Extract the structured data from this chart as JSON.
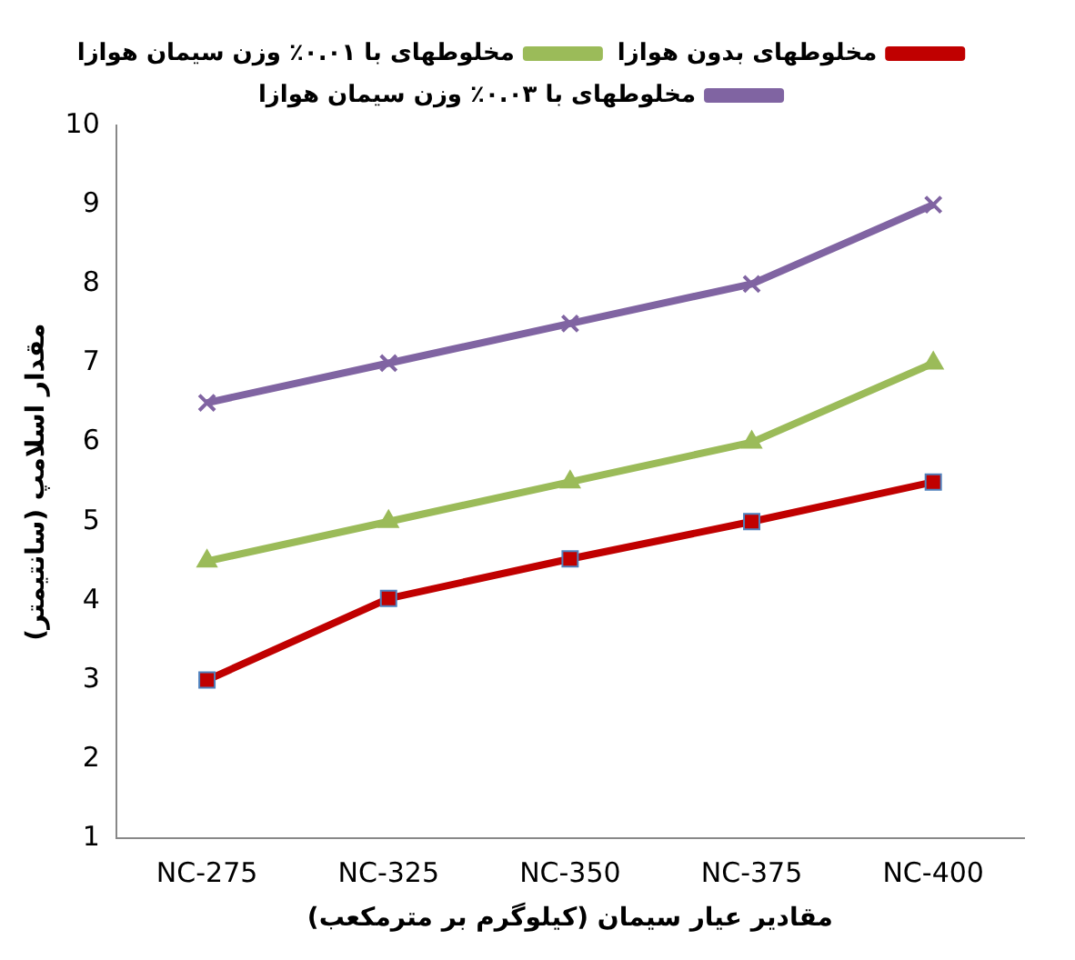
{
  "chart_data": {
    "type": "line",
    "xlabel": "مقادیر عیار سیمان (کیلوگرم بر مترمکعب)",
    "ylabel": "مقدار اسلامپ (سانتیمتر)",
    "categories": [
      "NC-275",
      "NC-325",
      "NC-350",
      "NC-375",
      "NC-400"
    ],
    "ylim": [
      1,
      10
    ],
    "yticks": [
      1,
      2,
      3,
      4,
      5,
      6,
      7,
      8,
      9,
      10
    ],
    "grid": false,
    "legend": "top",
    "series": [
      {
        "name": "مخلوطهای بدون هوازا",
        "color": "#c00000",
        "marker": "square",
        "values": [
          3,
          4.03,
          4.53,
          5,
          5.5
        ]
      },
      {
        "name": "مخلوطهای با ۰.۰۱٪ وزن سیمان هوازا",
        "color": "#9bbb59",
        "marker": "triangle",
        "values": [
          4.5,
          5,
          5.5,
          6,
          7
        ]
      },
      {
        "name": "مخلوطهای با ۰.۰۳٪ وزن سیمان هوازا",
        "color": "#8064a2",
        "marker": "cross",
        "values": [
          6.5,
          7,
          7.5,
          8,
          9
        ]
      }
    ]
  }
}
